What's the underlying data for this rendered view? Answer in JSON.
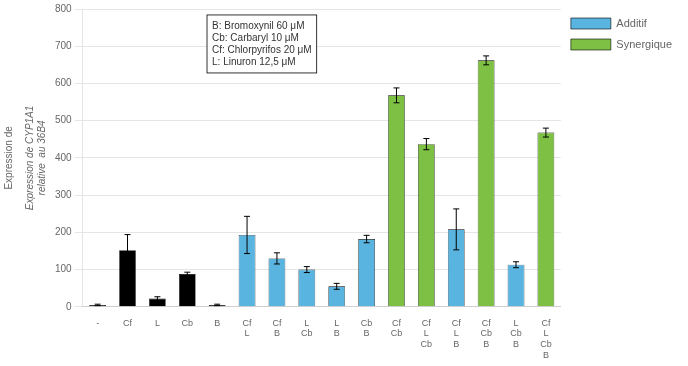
{
  "chart_data": {
    "type": "bar",
    "ylabel": "Expression de CYP1A1\nrelative  au 36B4",
    "annotations": [
      "Expression de",
      "B: Bromoxynil 60 μM\nCb: Carbaryl 10 μM\nCf: Chlorpyrifos 20 μM\nL: Linuron 12,5 μM"
    ],
    "categories": [
      "-",
      "Cf",
      "L",
      "Cb",
      "B",
      "Cf\nL",
      "Cf\nB",
      "L\nCb",
      "L\nB",
      "Cb\nB",
      "Cf\nCb",
      "Cf\nL\nCb",
      "Cf\nL\nB",
      "Cf\nCb\nB",
      "L\nCb\nB",
      "Cf\nL\nCb\nB"
    ],
    "series": [
      {
        "color": "#000000",
        "values": [
          5,
          152,
          22,
          88,
          5,
          null,
          null,
          null,
          null,
          null,
          null,
          null,
          null,
          null,
          null,
          null
        ],
        "errors": [
          2,
          42,
          5,
          5,
          2,
          null,
          null,
          null,
          null,
          null,
          null,
          null,
          null,
          null,
          null,
          null
        ]
      },
      {
        "name": "Additif",
        "color": "#5ab4e0",
        "values": [
          null,
          null,
          null,
          null,
          null,
          193,
          130,
          100,
          55,
          182,
          null,
          null,
          208,
          null,
          113,
          null
        ],
        "errors": [
          null,
          null,
          null,
          null,
          null,
          50,
          15,
          8,
          8,
          10,
          null,
          null,
          55,
          null,
          8,
          null
        ]
      },
      {
        "name": "Synergique",
        "color": "#7dc043",
        "values": [
          null,
          null,
          null,
          null,
          null,
          null,
          null,
          null,
          null,
          null,
          568,
          437,
          null,
          662,
          null,
          468
        ],
        "errors": [
          null,
          null,
          null,
          null,
          null,
          null,
          null,
          null,
          null,
          null,
          20,
          15,
          null,
          12,
          null,
          12
        ]
      }
    ],
    "ylim": [
      0,
      800
    ],
    "yticks": [
      0,
      100,
      200,
      300,
      400,
      500,
      600,
      700,
      800
    ],
    "grid": true,
    "legend": "right"
  }
}
